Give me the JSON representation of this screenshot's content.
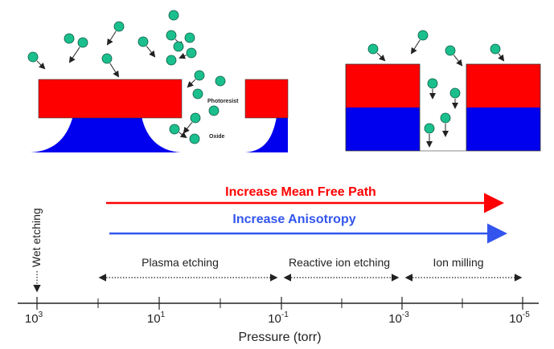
{
  "colors": {
    "resist": "#ff0000",
    "oxide": "#0000ee",
    "particle": "#1bbf8e",
    "particle_stroke": "#0a5a40",
    "arrow_red": "#ff0000",
    "arrow_blue": "#3355ee"
  },
  "left_figure": {
    "photoresist_label": "Photoresist",
    "oxide_label": "Oxide"
  },
  "arrows": {
    "mean_free_path": "Increase Mean Free Path",
    "anisotropy": "Increase Anisotropy"
  },
  "regimes": {
    "wet": "Wet etching",
    "plasma": "Plasma etching",
    "rie": "Reactive ion etching",
    "milling": "Ion milling"
  },
  "axis": {
    "title": "Pressure (torr)",
    "ticks": [
      {
        "base": "10",
        "exp": "3"
      },
      {
        "base": "10",
        "exp": "1"
      },
      {
        "base": "10",
        "exp": "-1"
      },
      {
        "base": "10",
        "exp": "-3"
      },
      {
        "base": "10",
        "exp": "-5"
      }
    ]
  }
}
